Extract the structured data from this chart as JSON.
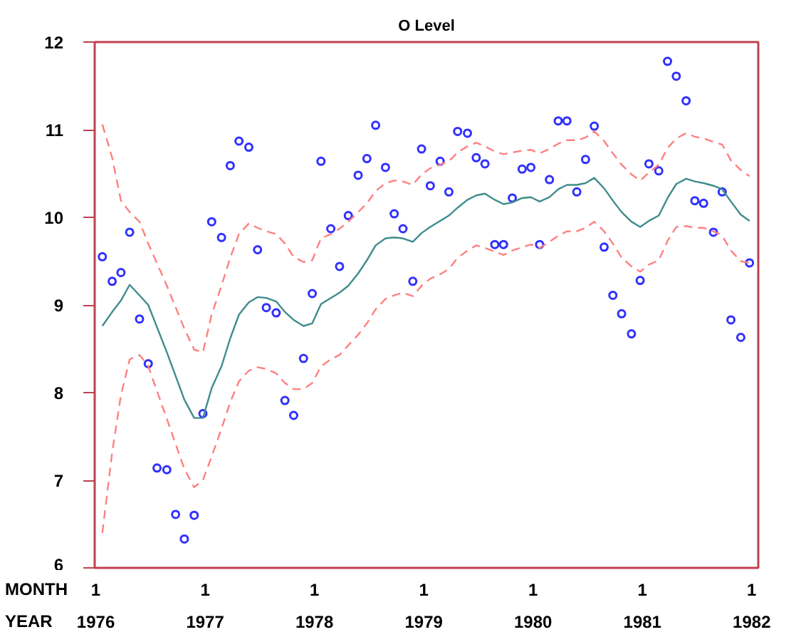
{
  "chart_data": {
    "type": "scatter",
    "title": "O Level",
    "xlim": [
      1975.99,
      1982.06
    ],
    "ylim": [
      6,
      12
    ],
    "xticks": [
      1976,
      1977,
      1978,
      1979,
      1980,
      1981,
      1982
    ],
    "yticks": [
      6,
      7,
      8,
      9,
      10,
      11,
      12
    ],
    "annotations": [
      "MONTH",
      "YEAR",
      "1",
      "1",
      "1",
      "1",
      "1",
      "1",
      "1"
    ],
    "series": [
      {
        "marker": "circle",
        "color": "#3030ff",
        "x": [
          1976.06,
          1976.15,
          1976.23,
          1976.31,
          1976.4,
          1976.48,
          1976.56,
          1976.65,
          1976.73,
          1976.81,
          1976.9,
          1976.98,
          1977.06,
          1977.15,
          1977.23,
          1977.31,
          1977.4,
          1977.48,
          1977.56,
          1977.65,
          1977.73,
          1977.81,
          1977.9,
          1977.98,
          1978.06,
          1978.15,
          1978.23,
          1978.31,
          1978.4,
          1978.48,
          1978.56,
          1978.65,
          1978.73,
          1978.81,
          1978.9,
          1978.98,
          1979.06,
          1979.15,
          1979.23,
          1979.31,
          1979.4,
          1979.48,
          1979.56,
          1979.65,
          1979.73,
          1979.81,
          1979.9,
          1979.98,
          1980.06,
          1980.15,
          1980.23,
          1980.31,
          1980.4,
          1980.48,
          1980.56,
          1980.65,
          1980.73,
          1980.81,
          1980.9,
          1980.98,
          1981.06,
          1981.15,
          1981.23,
          1981.31,
          1981.4,
          1981.48,
          1981.56,
          1981.65,
          1981.73,
          1981.81,
          1981.9,
          1981.98
        ],
        "values": [
          9.55,
          9.27,
          9.37,
          9.83,
          8.84,
          8.33,
          7.14,
          7.12,
          6.61,
          6.33,
          6.6,
          7.76,
          9.95,
          9.77,
          10.59,
          10.87,
          10.8,
          9.63,
          8.97,
          8.91,
          7.91,
          7.74,
          8.39,
          9.13,
          10.64,
          9.87,
          9.44,
          10.02,
          10.48,
          10.67,
          11.05,
          10.57,
          10.04,
          9.87,
          9.27,
          10.78,
          10.36,
          10.64,
          10.29,
          10.98,
          10.96,
          10.68,
          10.61,
          9.69,
          9.69,
          10.22,
          10.55,
          10.57,
          9.69,
          10.43,
          11.1,
          11.1,
          10.29,
          10.66,
          11.04,
          9.66,
          9.11,
          8.9,
          8.67,
          9.28,
          10.61,
          10.53,
          11.78,
          11.61,
          11.33,
          10.19,
          10.16,
          9.83,
          10.29,
          8.83,
          8.63,
          9.48
        ]
      },
      {
        "type": "line",
        "line_style": "solid",
        "color": "#408c8c",
        "x": [
          1976.06,
          1976.15,
          1976.23,
          1976.31,
          1976.4,
          1976.48,
          1976.65,
          1976.81,
          1976.9,
          1976.98,
          1977.06,
          1977.15,
          1977.23,
          1977.31,
          1977.4,
          1977.48,
          1977.56,
          1977.65,
          1977.73,
          1977.81,
          1977.9,
          1977.98,
          1978.06,
          1978.15,
          1978.23,
          1978.31,
          1978.4,
          1978.48,
          1978.56,
          1978.65,
          1978.73,
          1978.81,
          1978.9,
          1978.98,
          1979.06,
          1979.15,
          1979.23,
          1979.31,
          1979.4,
          1979.48,
          1979.56,
          1979.65,
          1979.73,
          1979.81,
          1979.9,
          1979.98,
          1980.06,
          1980.15,
          1980.23,
          1980.31,
          1980.4,
          1980.48,
          1980.56,
          1980.65,
          1980.73,
          1980.81,
          1980.9,
          1980.98,
          1981.06,
          1981.15,
          1981.23,
          1981.31,
          1981.4,
          1981.48,
          1981.56,
          1981.65,
          1981.73,
          1981.81,
          1981.9,
          1981.98
        ],
        "values": [
          8.76,
          8.92,
          9.05,
          9.23,
          9.11,
          9.0,
          8.46,
          7.92,
          7.71,
          7.71,
          8.05,
          8.3,
          8.62,
          8.89,
          9.03,
          9.09,
          9.08,
          9.04,
          8.92,
          8.83,
          8.76,
          8.79,
          9.01,
          9.08,
          9.14,
          9.22,
          9.36,
          9.51,
          9.68,
          9.76,
          9.77,
          9.76,
          9.72,
          9.82,
          9.89,
          9.96,
          10.02,
          10.11,
          10.2,
          10.25,
          10.27,
          10.2,
          10.15,
          10.17,
          10.22,
          10.23,
          10.18,
          10.23,
          10.32,
          10.37,
          10.37,
          10.39,
          10.45,
          10.33,
          10.19,
          10.06,
          9.95,
          9.89,
          9.96,
          10.02,
          10.22,
          10.38,
          10.44,
          10.41,
          10.39,
          10.36,
          10.32,
          10.18,
          10.03,
          9.96
        ]
      },
      {
        "type": "line",
        "line_style": "dashed",
        "color": "#ff8080",
        "x": [
          1976.06,
          1976.15,
          1976.23,
          1976.31,
          1976.4,
          1976.48,
          1976.65,
          1976.81,
          1976.9,
          1976.98,
          1977.06,
          1977.15,
          1977.23,
          1977.31,
          1977.4,
          1977.48,
          1977.56,
          1977.65,
          1977.73,
          1977.81,
          1977.9,
          1977.98,
          1978.06,
          1978.15,
          1978.23,
          1978.31,
          1978.4,
          1978.48,
          1978.56,
          1978.65,
          1978.73,
          1978.81,
          1978.9,
          1978.98,
          1979.06,
          1979.15,
          1979.23,
          1979.31,
          1979.4,
          1979.48,
          1979.56,
          1979.65,
          1979.73,
          1979.81,
          1979.9,
          1979.98,
          1980.06,
          1980.15,
          1980.23,
          1980.31,
          1980.4,
          1980.48,
          1980.56,
          1980.65,
          1980.73,
          1980.81,
          1980.9,
          1980.98,
          1981.06,
          1981.15,
          1981.23,
          1981.31,
          1981.4,
          1981.48,
          1981.56,
          1981.65,
          1981.73,
          1981.81,
          1981.9,
          1981.98
        ],
        "values": [
          11.06,
          10.68,
          10.19,
          10.06,
          9.95,
          9.7,
          9.22,
          8.73,
          8.49,
          8.46,
          8.89,
          9.22,
          9.54,
          9.81,
          9.93,
          9.88,
          9.84,
          9.81,
          9.7,
          9.55,
          9.49,
          9.51,
          9.76,
          9.81,
          9.87,
          9.95,
          10.06,
          10.16,
          10.3,
          10.39,
          10.42,
          10.41,
          10.37,
          10.49,
          10.56,
          10.6,
          10.64,
          10.74,
          10.81,
          10.85,
          10.81,
          10.75,
          10.72,
          10.74,
          10.76,
          10.77,
          10.73,
          10.78,
          10.84,
          10.88,
          10.88,
          10.91,
          10.98,
          10.87,
          10.73,
          10.6,
          10.49,
          10.42,
          10.51,
          10.6,
          10.79,
          10.9,
          10.96,
          10.92,
          10.9,
          10.86,
          10.83,
          10.65,
          10.54,
          10.47
        ]
      },
      {
        "type": "line",
        "line_style": "dashed",
        "color": "#ff8080",
        "x": [
          1976.06,
          1976.15,
          1976.23,
          1976.31,
          1976.4,
          1976.48,
          1976.65,
          1976.81,
          1976.9,
          1976.98,
          1977.06,
          1977.15,
          1977.23,
          1977.31,
          1977.4,
          1977.48,
          1977.56,
          1977.65,
          1977.73,
          1977.81,
          1977.9,
          1977.98,
          1978.06,
          1978.15,
          1978.23,
          1978.31,
          1978.4,
          1978.48,
          1978.56,
          1978.65,
          1978.73,
          1978.81,
          1978.9,
          1978.98,
          1979.06,
          1979.15,
          1979.23,
          1979.31,
          1979.4,
          1979.48,
          1979.56,
          1979.65,
          1979.73,
          1979.81,
          1979.9,
          1979.98,
          1980.06,
          1980.15,
          1980.23,
          1980.31,
          1980.4,
          1980.48,
          1980.56,
          1980.65,
          1980.73,
          1980.81,
          1980.9,
          1980.98,
          1981.06,
          1981.15,
          1981.23,
          1981.31,
          1981.4,
          1981.48,
          1981.56,
          1981.65,
          1981.73,
          1981.81,
          1981.9,
          1981.98
        ],
        "values": [
          6.4,
          7.32,
          7.97,
          8.38,
          8.43,
          8.3,
          7.7,
          7.13,
          6.92,
          7.0,
          7.27,
          7.59,
          7.89,
          8.13,
          8.25,
          8.29,
          8.27,
          8.22,
          8.11,
          8.04,
          8.04,
          8.11,
          8.3,
          8.38,
          8.43,
          8.54,
          8.66,
          8.79,
          8.95,
          9.07,
          9.11,
          9.14,
          9.1,
          9.22,
          9.3,
          9.35,
          9.41,
          9.54,
          9.62,
          9.68,
          9.65,
          9.61,
          9.57,
          9.62,
          9.66,
          9.69,
          9.65,
          9.72,
          9.79,
          9.84,
          9.84,
          9.88,
          9.95,
          9.84,
          9.7,
          9.54,
          9.44,
          9.38,
          9.46,
          9.51,
          9.73,
          9.89,
          9.9,
          9.88,
          9.88,
          9.84,
          9.79,
          9.62,
          9.5,
          9.48
        ]
      }
    ]
  }
}
